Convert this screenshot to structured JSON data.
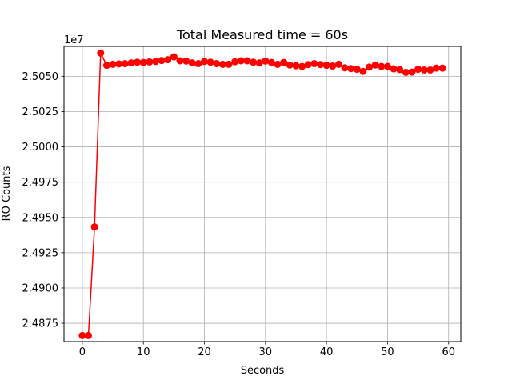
{
  "chart_data": {
    "type": "line",
    "title": "Total Measured time = 60s",
    "xlabel": "Seconds",
    "ylabel": "RO Counts",
    "y_offset_label": "1e7",
    "grid": true,
    "xlim": [
      -3,
      62
    ],
    "ylim": [
      24.862,
      25.0712
    ],
    "x_ticks": [
      0,
      10,
      20,
      30,
      40,
      50,
      60
    ],
    "x_tick_labels": [
      "0",
      "10",
      "20",
      "30",
      "40",
      "50",
      "60"
    ],
    "y_ticks": [
      24.875,
      24.9,
      24.925,
      24.95,
      24.975,
      25.0,
      25.025,
      25.05
    ],
    "y_tick_labels": [
      "2.4875",
      "2.4900",
      "2.4925",
      "2.4950",
      "2.4975",
      "2.5000",
      "2.5025",
      "2.5050"
    ],
    "series": [
      {
        "color": "#ff0000",
        "marker": "circle",
        "x": [
          0,
          1,
          2,
          3,
          4,
          5,
          6,
          7,
          8,
          9,
          10,
          11,
          12,
          13,
          14,
          15,
          16,
          17,
          18,
          19,
          20,
          21,
          22,
          23,
          24,
          25,
          26,
          27,
          28,
          29,
          30,
          31,
          32,
          33,
          34,
          35,
          36,
          37,
          38,
          39,
          40,
          41,
          42,
          43,
          44,
          45,
          46,
          47,
          48,
          49,
          50,
          51,
          52,
          53,
          54,
          55,
          56,
          57,
          58,
          59
        ],
        "y": [
          24.8663,
          24.8663,
          24.9433,
          25.0665,
          25.0578,
          25.0585,
          25.0588,
          25.059,
          25.0595,
          25.06,
          25.0598,
          25.0602,
          25.0605,
          25.0612,
          25.0618,
          25.0638,
          25.061,
          25.0608,
          25.0595,
          25.059,
          25.0605,
          25.06,
          25.059,
          25.0585,
          25.0585,
          25.0603,
          25.061,
          25.061,
          25.06,
          25.0595,
          25.0608,
          25.0598,
          25.0585,
          25.0598,
          25.058,
          25.0575,
          25.057,
          25.0583,
          25.059,
          25.0583,
          25.0578,
          25.0573,
          25.0585,
          25.056,
          25.0555,
          25.055,
          25.0535,
          25.0565,
          25.058,
          25.057,
          25.057,
          25.0553,
          25.0548,
          25.0528,
          25.053,
          25.055,
          25.0545,
          25.0545,
          25.0558,
          25.0558
        ]
      }
    ]
  }
}
